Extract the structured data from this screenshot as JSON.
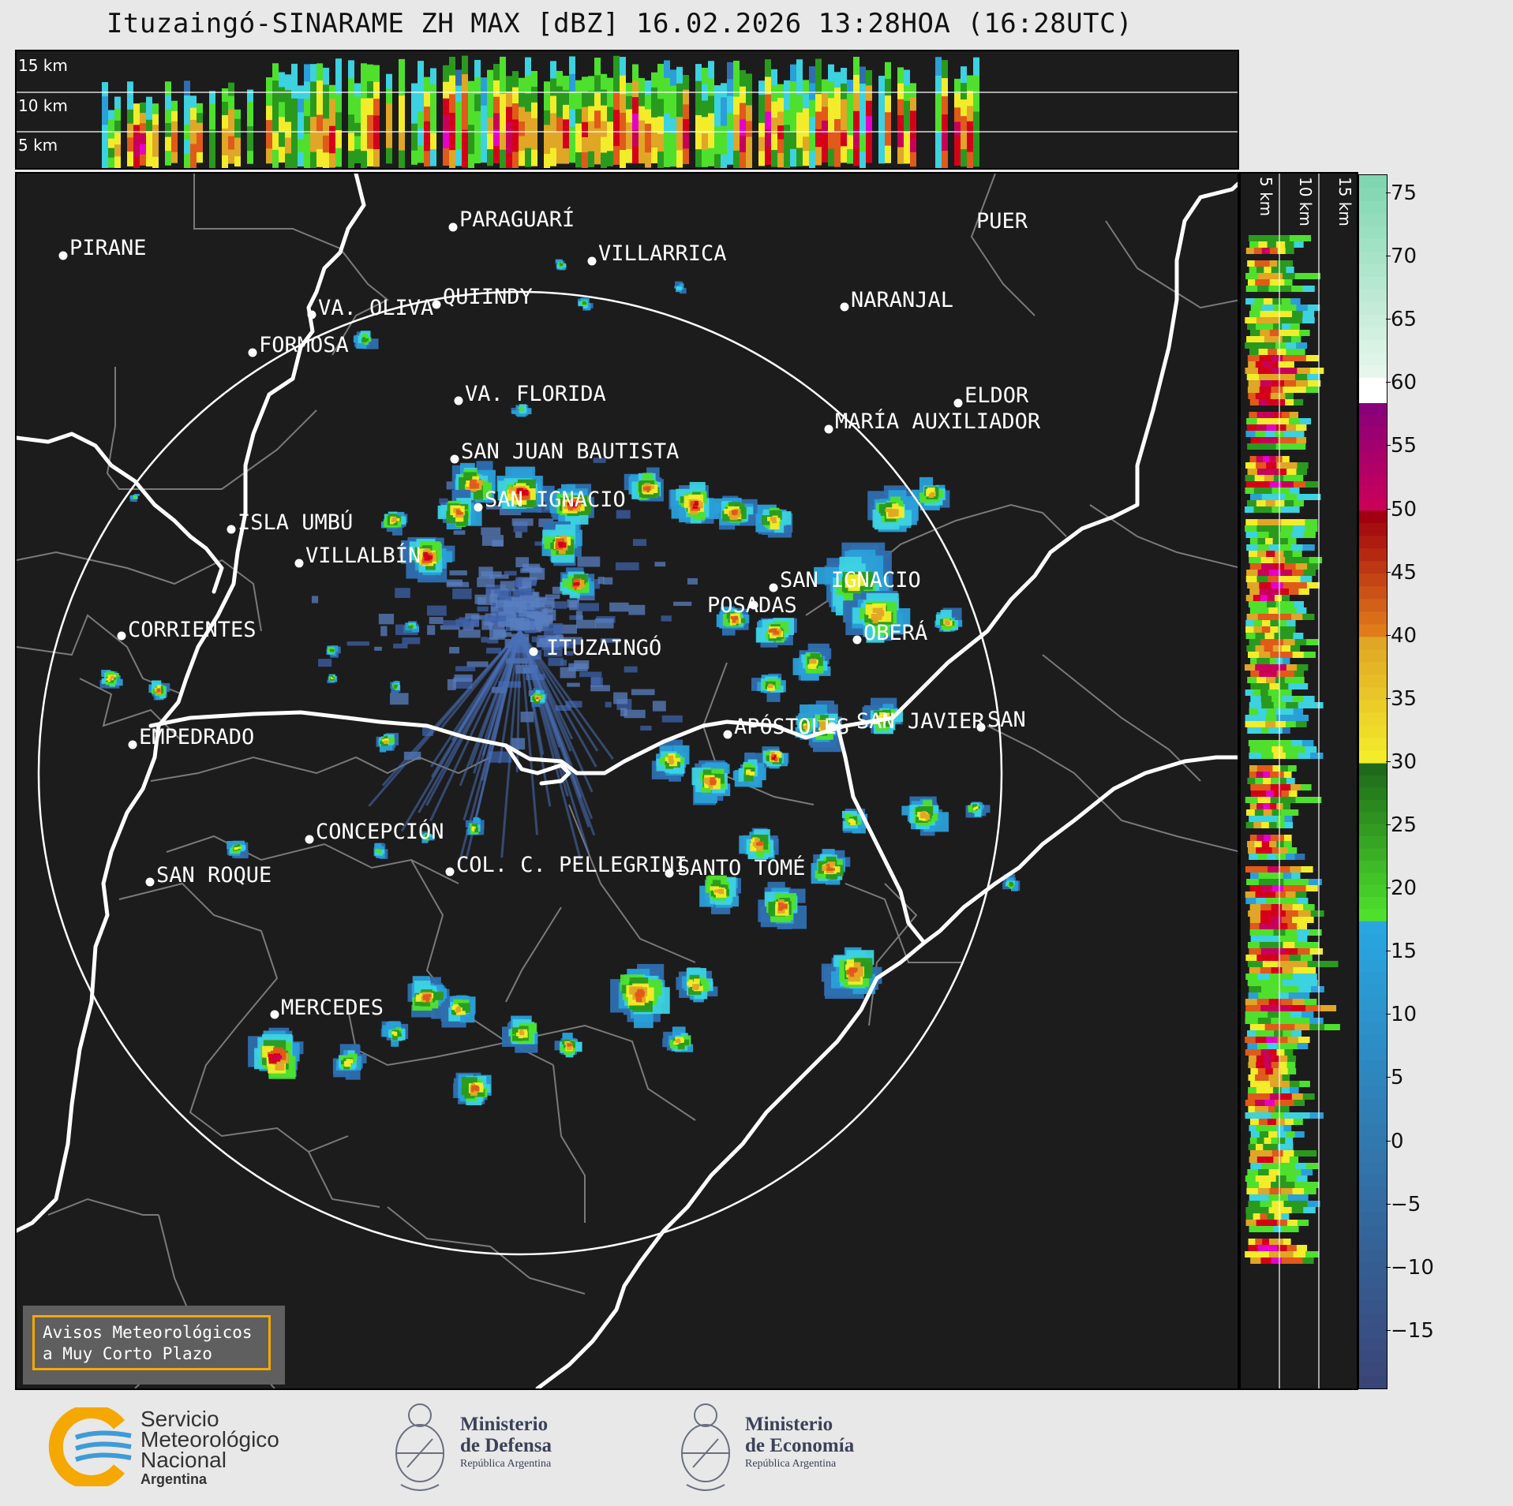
{
  "title": "Ituzaingó-SINARAME ZH MAX [dBZ] 16.02.2026 13:28HOA (16:28UTC)",
  "height_labels": {
    "h15": "15 km",
    "h10": "10 km",
    "h5": "5 km"
  },
  "cities": [
    {
      "name": "PIRANE"
    },
    {
      "name": "PARAGUARÍ"
    },
    {
      "name": "VILLARRICA"
    },
    {
      "name": "QUIINDY"
    },
    {
      "name": "VA. OLIVA"
    },
    {
      "name": "NARANJAL"
    },
    {
      "name": "FORMOSA"
    },
    {
      "name": "VA. FLORIDA"
    },
    {
      "name": "ELDOR"
    },
    {
      "name": "MARÍA AUXILIADOR"
    },
    {
      "name": "SAN JUAN BAUTISTA"
    },
    {
      "name": "SAN IGNACIO"
    },
    {
      "name": "ISLA UMBÚ"
    },
    {
      "name": "VILLALBÍN"
    },
    {
      "name": "SAN IGNACIO"
    },
    {
      "name": "POSADAS"
    },
    {
      "name": "CORRIENTES"
    },
    {
      "name": "OBERÁ"
    },
    {
      "name": "ITUZAINGÓ"
    },
    {
      "name": "APÓSTOLES"
    },
    {
      "name": "SAN JAVIER"
    },
    {
      "name": "SAN"
    },
    {
      "name": "EMPEDRADO"
    },
    {
      "name": "CONCEPCIÓN"
    },
    {
      "name": "COL. C. PELLEGRINI"
    },
    {
      "name": "SANTO TOMÉ"
    },
    {
      "name": "SAN ROQUE"
    },
    {
      "name": "MERCEDES"
    },
    {
      "name": "PUER"
    }
  ],
  "colorbar": {
    "ticks": [
      "75",
      "70",
      "65",
      "60",
      "55",
      "50",
      "45",
      "40",
      "35",
      "30",
      "25",
      "20",
      "15",
      "10",
      "5",
      "0",
      "−5",
      "−10",
      "−15"
    ],
    "min": -19.5,
    "max": 76.5,
    "stops": [
      {
        "from": -19.5,
        "to": 17.5,
        "color": "#3a4577",
        "color2": "#29a6e0"
      },
      {
        "from": 17.5,
        "to": 30,
        "color": "#4ee02d",
        "color2": "#1f6a1a"
      },
      {
        "from": 30,
        "to": 40,
        "color": "#f3ec2a",
        "color2": "#e0a626"
      },
      {
        "from": 40,
        "to": 50,
        "color": "#e07b1a",
        "color2": "#a0000f"
      },
      {
        "from": 50,
        "to": 58.5,
        "color": "#c8005a",
        "color2": "#8a007a"
      },
      {
        "from": 58.5,
        "to": 60.5,
        "color": "#ffffff",
        "color2": "#ffffff"
      },
      {
        "from": 60.5,
        "to": 76.5,
        "color": "#e6f6ec",
        "color2": "#7fd6b0"
      }
    ]
  },
  "alert": {
    "line1": "Avisos Meteorológicos",
    "line2": "a Muy Corto Plazo"
  },
  "footer": {
    "smn_line1": "Servicio",
    "smn_line2": "Meteorológico",
    "smn_line3": "Nacional",
    "smn_line4": "Argentina",
    "defensa_line1": "Ministerio",
    "defensa_line2": "de Defensa",
    "defensa_line3": "República Argentina",
    "economia_line1": "Ministerio",
    "economia_line2": "de Economía",
    "economia_line3": "República Argentina"
  }
}
